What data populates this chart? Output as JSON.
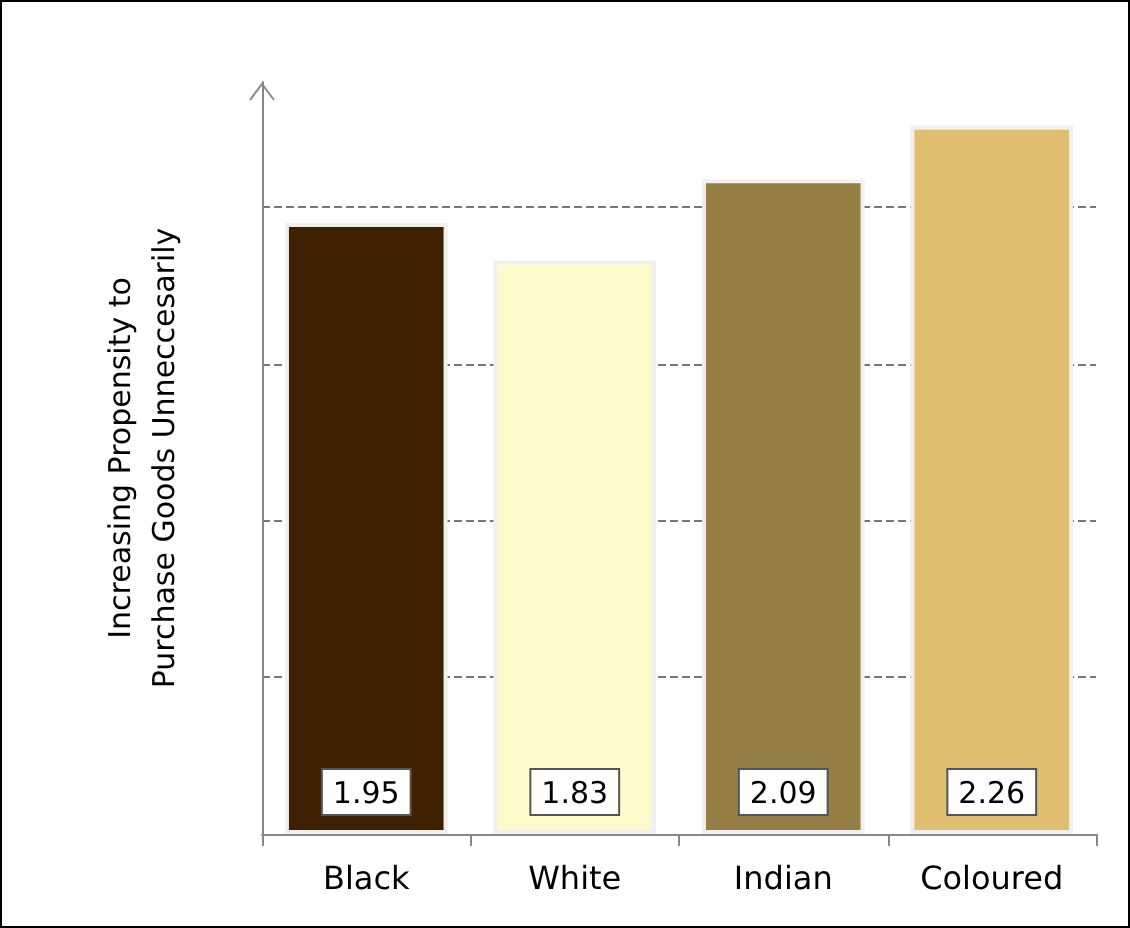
{
  "chart_data": {
    "type": "bar",
    "ylabel": "Increasing Propensity to Purchase Goods Unneccesarily",
    "categories": [
      "Black",
      "White",
      "Indian",
      "Coloured"
    ],
    "values": [
      1.95,
      1.83,
      2.09,
      2.26
    ],
    "colors": [
      "#3f2100",
      "#fffacc",
      "#957f45",
      "#e0c070"
    ],
    "ylim": [
      0,
      2.4
    ],
    "yticks": [
      {
        "value": 0.5,
        "label": null
      },
      {
        "value": 1,
        "label": null
      },
      {
        "value": 1.5,
        "label": null
      },
      {
        "value": 2,
        "label": null
      }
    ],
    "grid": "y",
    "data_labels": true
  }
}
